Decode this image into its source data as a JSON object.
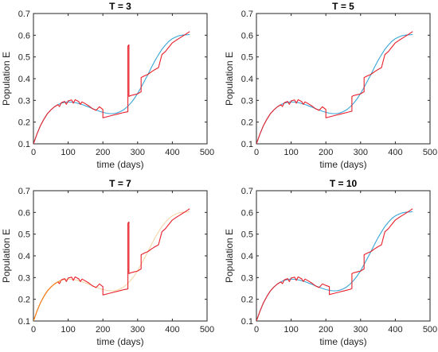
{
  "chart_data": [
    {
      "type": "line",
      "title": "T = 3",
      "xlabel": "time (days)",
      "ylabel": "Population E",
      "xlim": [
        0,
        500
      ],
      "ylim": [
        0.1,
        0.7
      ],
      "xticks": [
        0,
        100,
        200,
        300,
        400,
        500
      ],
      "yticks": [
        0.1,
        0.2,
        0.3,
        0.4,
        0.5,
        0.6,
        0.7
      ],
      "grid": false,
      "series": [
        {
          "color": "#3aa6d8",
          "x": [
            0,
            10,
            20,
            30,
            40,
            50,
            60,
            70,
            80,
            90,
            100,
            110,
            120,
            130,
            140,
            150,
            160,
            170,
            180,
            190,
            200,
            210,
            220,
            230,
            240,
            250,
            260,
            270,
            280,
            290,
            300,
            310,
            320,
            330,
            340,
            350,
            360,
            370,
            380,
            390,
            400,
            410,
            420,
            430,
            440,
            450
          ],
          "y": [
            0.1,
            0.145,
            0.183,
            0.213,
            0.238,
            0.256,
            0.27,
            0.28,
            0.287,
            0.291,
            0.293,
            0.292,
            0.29,
            0.286,
            0.281,
            0.275,
            0.269,
            0.262,
            0.256,
            0.25,
            0.245,
            0.241,
            0.239,
            0.239,
            0.242,
            0.248,
            0.257,
            0.27,
            0.287,
            0.307,
            0.332,
            0.36,
            0.39,
            0.42,
            0.452,
            0.483,
            0.51,
            0.535,
            0.555,
            0.572,
            0.584,
            0.592,
            0.598,
            0.601,
            0.602,
            0.603
          ]
        },
        {
          "color": "#e8202a",
          "x": [
            0,
            10,
            20,
            30,
            40,
            50,
            60,
            70,
            75,
            80,
            90,
            95,
            100,
            110,
            115,
            120,
            130,
            135,
            140,
            150,
            160,
            170,
            180,
            185,
            190,
            200,
            200,
            210,
            220,
            230,
            240,
            250,
            260,
            270,
            272,
            272,
            275,
            275,
            280,
            290,
            300,
            310,
            310,
            320,
            330,
            340,
            350,
            360,
            370,
            380,
            390,
            400,
            410,
            420,
            430,
            440,
            450
          ],
          "y": [
            0.1,
            0.145,
            0.183,
            0.213,
            0.238,
            0.256,
            0.27,
            0.28,
            0.272,
            0.289,
            0.295,
            0.282,
            0.298,
            0.302,
            0.287,
            0.303,
            0.295,
            0.282,
            0.293,
            0.284,
            0.274,
            0.262,
            0.254,
            0.262,
            0.271,
            0.258,
            0.22,
            0.224,
            0.228,
            0.232,
            0.236,
            0.24,
            0.244,
            0.247,
            0.248,
            0.55,
            0.556,
            0.318,
            0.322,
            0.326,
            0.33,
            0.34,
            0.405,
            0.413,
            0.42,
            0.432,
            0.442,
            0.451,
            0.511,
            0.525,
            0.545,
            0.565,
            0.576,
            0.586,
            0.596,
            0.606,
            0.617
          ]
        }
      ]
    },
    {
      "type": "line",
      "title": "T = 5",
      "xlabel": "time (days)",
      "ylabel": "Population E",
      "xlim": [
        0,
        500
      ],
      "ylim": [
        0.1,
        0.7
      ],
      "xticks": [
        0,
        100,
        200,
        300,
        400,
        500
      ],
      "yticks": [
        0.1,
        0.2,
        0.3,
        0.4,
        0.5,
        0.6,
        0.7
      ],
      "grid": false,
      "series": [
        {
          "color": "#3aa6d8",
          "x": [
            0,
            10,
            20,
            30,
            40,
            50,
            60,
            70,
            80,
            90,
            100,
            110,
            120,
            130,
            140,
            150,
            160,
            170,
            180,
            190,
            200,
            210,
            220,
            230,
            240,
            250,
            260,
            270,
            280,
            290,
            300,
            310,
            320,
            330,
            340,
            350,
            360,
            370,
            380,
            390,
            400,
            410,
            420,
            430,
            440,
            450
          ],
          "y": [
            0.1,
            0.145,
            0.183,
            0.213,
            0.238,
            0.256,
            0.27,
            0.28,
            0.287,
            0.291,
            0.293,
            0.292,
            0.29,
            0.286,
            0.281,
            0.275,
            0.269,
            0.262,
            0.256,
            0.25,
            0.245,
            0.241,
            0.239,
            0.239,
            0.242,
            0.248,
            0.257,
            0.27,
            0.287,
            0.307,
            0.332,
            0.36,
            0.39,
            0.42,
            0.452,
            0.483,
            0.51,
            0.535,
            0.555,
            0.572,
            0.584,
            0.592,
            0.598,
            0.601,
            0.602,
            0.603
          ]
        },
        {
          "color": "#e8202a",
          "x": [
            0,
            10,
            20,
            30,
            40,
            50,
            60,
            70,
            75,
            80,
            90,
            95,
            100,
            110,
            115,
            120,
            130,
            135,
            140,
            150,
            160,
            170,
            180,
            185,
            190,
            200,
            200,
            210,
            220,
            230,
            240,
            250,
            260,
            270,
            275,
            275,
            280,
            290,
            300,
            310,
            310,
            320,
            330,
            340,
            350,
            360,
            370,
            380,
            390,
            400,
            410,
            420,
            430,
            440,
            450
          ],
          "y": [
            0.1,
            0.145,
            0.183,
            0.213,
            0.238,
            0.256,
            0.27,
            0.28,
            0.272,
            0.289,
            0.295,
            0.282,
            0.298,
            0.302,
            0.287,
            0.303,
            0.295,
            0.282,
            0.293,
            0.284,
            0.274,
            0.262,
            0.254,
            0.262,
            0.271,
            0.258,
            0.22,
            0.224,
            0.228,
            0.232,
            0.236,
            0.24,
            0.244,
            0.248,
            0.25,
            0.318,
            0.322,
            0.326,
            0.33,
            0.34,
            0.405,
            0.413,
            0.42,
            0.432,
            0.442,
            0.451,
            0.511,
            0.525,
            0.545,
            0.565,
            0.576,
            0.586,
            0.596,
            0.606,
            0.617
          ]
        }
      ]
    },
    {
      "type": "line",
      "title": "T = 7",
      "xlabel": "time (days)",
      "ylabel": "Population E",
      "xlim": [
        0,
        500
      ],
      "ylim": [
        0.1,
        0.7
      ],
      "xticks": [
        0,
        100,
        200,
        300,
        400,
        500
      ],
      "yticks": [
        0.1,
        0.2,
        0.3,
        0.4,
        0.5,
        0.6,
        0.7
      ],
      "grid": false,
      "series": [
        {
          "color": "#f5d7a8",
          "x": [
            0,
            10,
            20,
            30,
            40,
            50,
            60,
            70,
            80,
            90,
            100,
            110,
            120,
            130,
            140,
            150,
            160,
            170,
            180,
            190,
            200,
            210,
            220,
            230,
            240,
            250,
            260,
            270,
            280,
            290,
            300,
            310,
            320,
            330,
            340,
            350,
            360,
            370,
            380,
            390,
            400,
            410,
            420,
            430,
            440,
            450
          ],
          "y": [
            0.1,
            0.145,
            0.183,
            0.213,
            0.238,
            0.256,
            0.27,
            0.28,
            0.287,
            0.291,
            0.293,
            0.292,
            0.29,
            0.286,
            0.281,
            0.275,
            0.269,
            0.262,
            0.256,
            0.25,
            0.245,
            0.241,
            0.239,
            0.239,
            0.242,
            0.248,
            0.257,
            0.27,
            0.287,
            0.307,
            0.332,
            0.36,
            0.39,
            0.42,
            0.452,
            0.483,
            0.51,
            0.535,
            0.555,
            0.572,
            0.584,
            0.592,
            0.598,
            0.601,
            0.602,
            0.603
          ]
        },
        {
          "color": "#e8202a",
          "x": [
            0,
            10,
            20,
            30,
            40,
            50,
            60,
            70,
            75,
            80,
            90,
            95,
            100,
            110,
            115,
            120,
            130,
            135,
            140,
            150,
            160,
            170,
            180,
            185,
            190,
            200,
            200,
            210,
            220,
            230,
            240,
            250,
            260,
            270,
            272,
            272,
            275,
            275,
            280,
            290,
            300,
            310,
            310,
            320,
            330,
            340,
            350,
            360,
            370,
            380,
            390,
            400,
            410,
            420,
            430,
            440,
            450
          ],
          "y": [
            0.1,
            0.145,
            0.183,
            0.213,
            0.238,
            0.256,
            0.27,
            0.28,
            0.272,
            0.289,
            0.295,
            0.282,
            0.298,
            0.302,
            0.287,
            0.303,
            0.295,
            0.282,
            0.293,
            0.284,
            0.274,
            0.262,
            0.254,
            0.262,
            0.271,
            0.258,
            0.22,
            0.224,
            0.228,
            0.232,
            0.236,
            0.24,
            0.244,
            0.247,
            0.248,
            0.55,
            0.556,
            0.318,
            0.322,
            0.326,
            0.33,
            0.34,
            0.405,
            0.413,
            0.42,
            0.432,
            0.442,
            0.451,
            0.511,
            0.525,
            0.545,
            0.565,
            0.576,
            0.586,
            0.596,
            0.606,
            0.617
          ]
        },
        {
          "color": "#f28a1c",
          "x": [
            0,
            10,
            20,
            30,
            40,
            50,
            60,
            70,
            80
          ],
          "y": [
            0.1,
            0.145,
            0.183,
            0.213,
            0.238,
            0.256,
            0.27,
            0.28,
            0.287
          ]
        }
      ]
    },
    {
      "type": "line",
      "title": "T = 10",
      "xlabel": "time (days)",
      "ylabel": "Population E",
      "xlim": [
        0,
        500
      ],
      "ylim": [
        0.1,
        0.7
      ],
      "xticks": [
        0,
        100,
        200,
        300,
        400,
        500
      ],
      "yticks": [
        0.1,
        0.2,
        0.3,
        0.4,
        0.5,
        0.6,
        0.7
      ],
      "grid": false,
      "series": [
        {
          "color": "#3aa6d8",
          "x": [
            0,
            10,
            20,
            30,
            40,
            50,
            60,
            70,
            80,
            90,
            100,
            110,
            120,
            130,
            140,
            150,
            160,
            170,
            180,
            190,
            200,
            210,
            220,
            230,
            240,
            250,
            260,
            270,
            280,
            290,
            300,
            310,
            320,
            330,
            340,
            350,
            360,
            370,
            380,
            390,
            400,
            410,
            420,
            430,
            440,
            450
          ],
          "y": [
            0.1,
            0.145,
            0.183,
            0.213,
            0.238,
            0.256,
            0.27,
            0.28,
            0.287,
            0.291,
            0.293,
            0.292,
            0.29,
            0.286,
            0.281,
            0.275,
            0.269,
            0.262,
            0.256,
            0.25,
            0.245,
            0.241,
            0.239,
            0.239,
            0.242,
            0.248,
            0.257,
            0.27,
            0.287,
            0.307,
            0.332,
            0.36,
            0.39,
            0.42,
            0.452,
            0.483,
            0.51,
            0.535,
            0.555,
            0.572,
            0.584,
            0.592,
            0.598,
            0.601,
            0.602,
            0.603
          ]
        },
        {
          "color": "#e8202a",
          "x": [
            0,
            10,
            20,
            30,
            40,
            50,
            60,
            70,
            75,
            80,
            90,
            95,
            100,
            110,
            115,
            120,
            130,
            135,
            140,
            150,
            160,
            170,
            180,
            185,
            190,
            200,
            210,
            210,
            220,
            230,
            240,
            250,
            260,
            270,
            275,
            275,
            280,
            290,
            300,
            310,
            310,
            320,
            330,
            340,
            350,
            360,
            370,
            380,
            390,
            400,
            410,
            420,
            430,
            440,
            450
          ],
          "y": [
            0.1,
            0.145,
            0.183,
            0.213,
            0.238,
            0.256,
            0.27,
            0.28,
            0.272,
            0.289,
            0.295,
            0.282,
            0.298,
            0.302,
            0.287,
            0.303,
            0.295,
            0.282,
            0.293,
            0.284,
            0.274,
            0.262,
            0.254,
            0.262,
            0.271,
            0.264,
            0.258,
            0.222,
            0.226,
            0.23,
            0.234,
            0.238,
            0.242,
            0.246,
            0.25,
            0.318,
            0.322,
            0.326,
            0.33,
            0.34,
            0.405,
            0.413,
            0.42,
            0.432,
            0.442,
            0.451,
            0.511,
            0.525,
            0.545,
            0.565,
            0.576,
            0.586,
            0.596,
            0.606,
            0.617
          ]
        }
      ]
    }
  ]
}
